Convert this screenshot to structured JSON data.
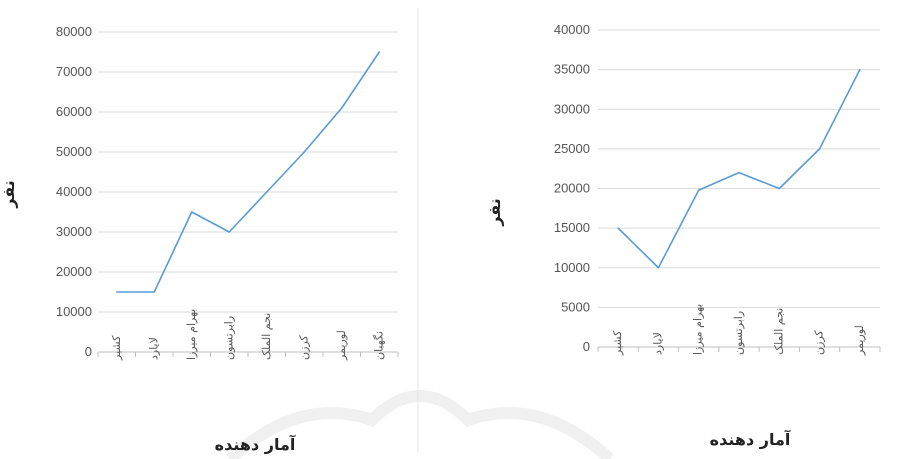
{
  "charts": [
    {
      "type": "line",
      "xlabel": "آمار دهنده",
      "ylabel": "نفر",
      "ylim": [
        0,
        80000
      ],
      "yticks": [
        0,
        10000,
        20000,
        30000,
        40000,
        50000,
        60000,
        70000,
        80000
      ],
      "categories": [
        "کشیر",
        "لایارد",
        "بهرام میرزا",
        "رابرتسون",
        "نجم الملک",
        "کرزن",
        "لوریمر",
        "نگهبان"
      ],
      "values": [
        15000,
        15000,
        35000,
        30000,
        40000,
        50000,
        61000,
        75000
      ],
      "grid": true,
      "line_color": "#5B9BD5"
    },
    {
      "type": "line",
      "xlabel": "آمار دهنده",
      "ylabel": "نفر",
      "ylim": [
        0,
        40000
      ],
      "yticks": [
        0,
        5000,
        10000,
        15000,
        20000,
        25000,
        30000,
        35000,
        40000
      ],
      "categories": [
        "کشیر",
        "لایارد",
        "بهرام میرزا",
        "رابرتسون",
        "نجم الملک",
        "کرزن",
        "لوریمر"
      ],
      "values": [
        15000,
        10000,
        19800,
        22000,
        20000,
        25000,
        35000
      ],
      "grid": true,
      "line_color": "#5B9BD5"
    }
  ]
}
